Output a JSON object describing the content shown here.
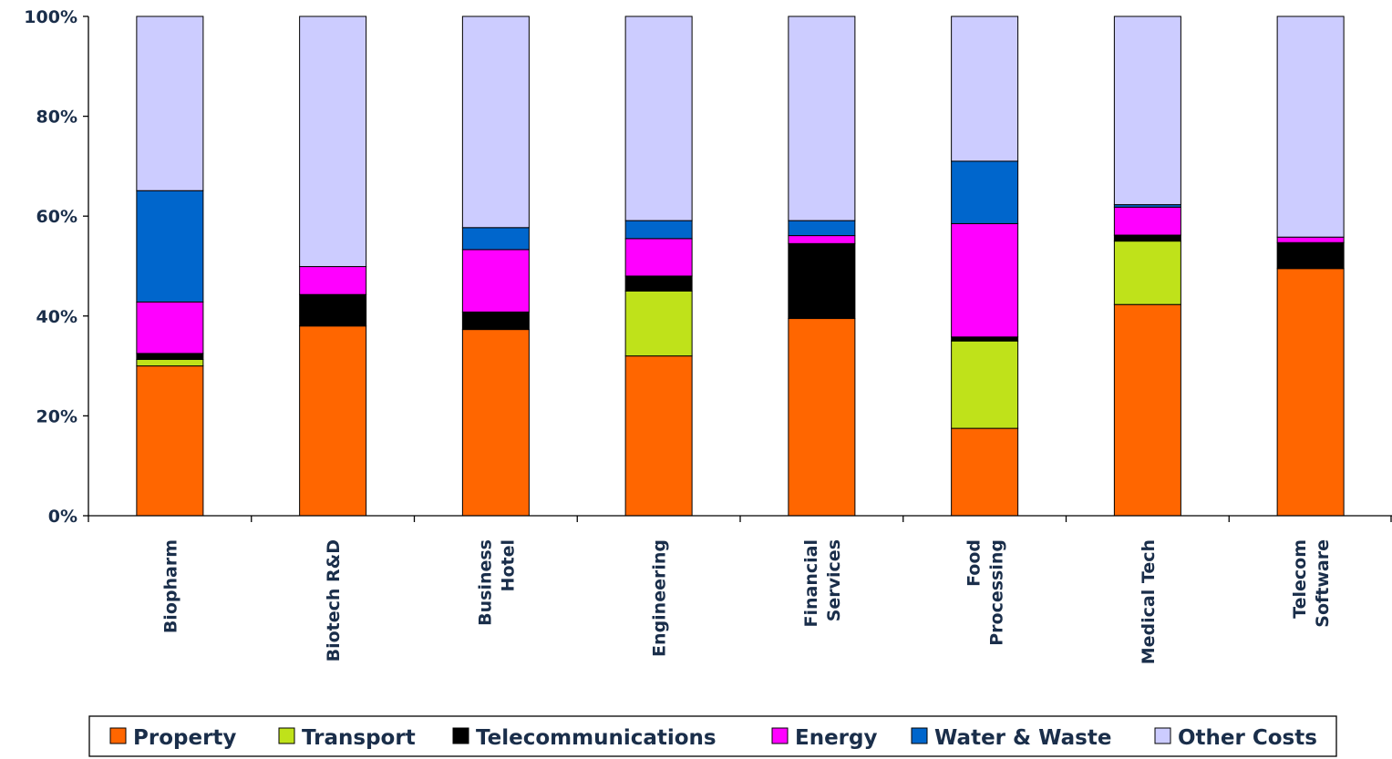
{
  "chart_data": {
    "type": "bar",
    "stacked": true,
    "percent": true,
    "title": "",
    "xlabel": "",
    "ylabel": "",
    "ylim": [
      0,
      100
    ],
    "yticks": [
      "0%",
      "20%",
      "40%",
      "60%",
      "80%",
      "100%"
    ],
    "categories": [
      [
        "Biopharm"
      ],
      [
        "Biotech R&D"
      ],
      [
        "Business",
        "Hotel"
      ],
      [
        "Engineering"
      ],
      [
        "Financial",
        "Services"
      ],
      [
        "Food",
        "Processing"
      ],
      [
        "Medical Tech"
      ],
      [
        "Telecom",
        "Software"
      ]
    ],
    "series": [
      {
        "name": "Property",
        "color": "#ff6600",
        "values": [
          30,
          38,
          37.3,
          32,
          39.5,
          17.5,
          42.3,
          49.5
        ]
      },
      {
        "name": "Transport",
        "color": "#bfe21a",
        "values": [
          1.3,
          0,
          0,
          13,
          0,
          17.5,
          12.7,
          0
        ]
      },
      {
        "name": "Telecommunications",
        "color": "#000000",
        "values": [
          1.2,
          6.3,
          3.5,
          3,
          15,
          0.8,
          1.2,
          5.2
        ]
      },
      {
        "name": "Energy",
        "color": "#ff00ff",
        "values": [
          10.3,
          5.6,
          12.5,
          7.5,
          1.6,
          22.7,
          5.6,
          1.1
        ]
      },
      {
        "name": "Water & Waste",
        "color": "#0066cc",
        "values": [
          22.3,
          0,
          4.4,
          3.6,
          3,
          12.5,
          0.5,
          0
        ]
      },
      {
        "name": "Other Costs",
        "color": "#ccccff",
        "values": [
          34.9,
          50.1,
          42.3,
          40.9,
          40.9,
          29,
          37.7,
          44.2
        ]
      }
    ],
    "legend_position": "bottom",
    "grid": false
  }
}
